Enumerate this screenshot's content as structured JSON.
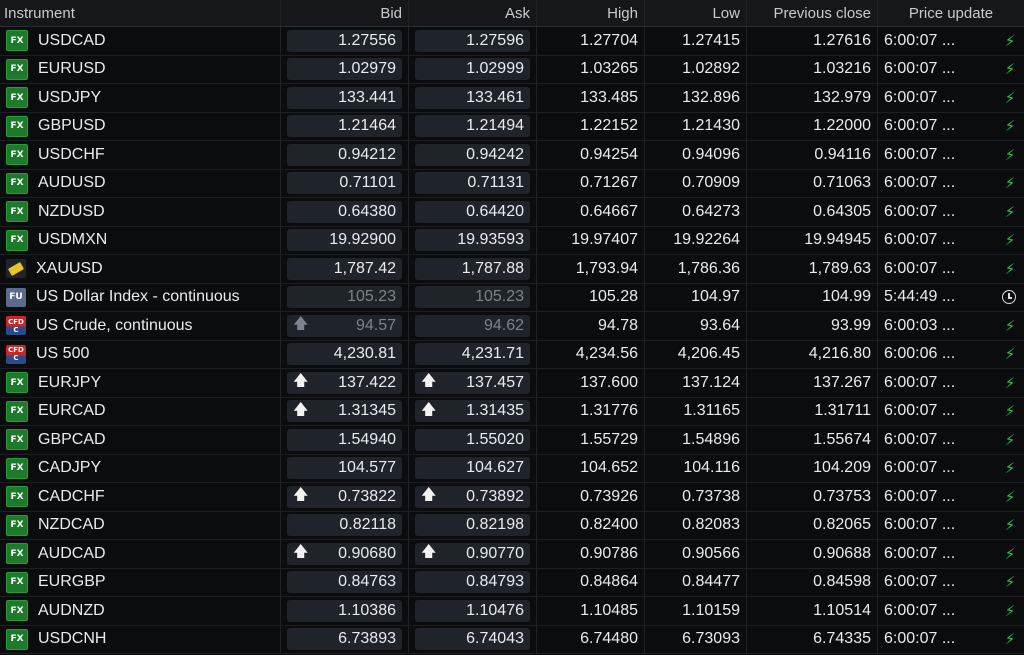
{
  "columns": {
    "instrument": "Instrument",
    "bid": "Bid",
    "ask": "Ask",
    "high": "High",
    "low": "Low",
    "prev_close": "Previous close",
    "price_update": "Price update"
  },
  "rows": [
    {
      "icon": "fx",
      "name": "USDCAD",
      "bid": "1.27556",
      "ask": "1.27596",
      "high": "1.27704",
      "low": "1.27415",
      "prev": "1.27616",
      "update": "6:00:07 ...",
      "status": "bolt",
      "bid_arrow": "",
      "ask_arrow": "",
      "dim": false
    },
    {
      "icon": "fx",
      "name": "EURUSD",
      "bid": "1.02979",
      "ask": "1.02999",
      "high": "1.03265",
      "low": "1.02892",
      "prev": "1.03216",
      "update": "6:00:07 ...",
      "status": "bolt",
      "bid_arrow": "",
      "ask_arrow": "",
      "dim": false
    },
    {
      "icon": "fx",
      "name": "USDJPY",
      "bid": "133.441",
      "ask": "133.461",
      "high": "133.485",
      "low": "132.896",
      "prev": "132.979",
      "update": "6:00:07 ...",
      "status": "bolt",
      "bid_arrow": "",
      "ask_arrow": "",
      "dim": false
    },
    {
      "icon": "fx",
      "name": "GBPUSD",
      "bid": "1.21464",
      "ask": "1.21494",
      "high": "1.22152",
      "low": "1.21430",
      "prev": "1.22000",
      "update": "6:00:07 ...",
      "status": "bolt",
      "bid_arrow": "",
      "ask_arrow": "",
      "dim": false
    },
    {
      "icon": "fx",
      "name": "USDCHF",
      "bid": "0.94212",
      "ask": "0.94242",
      "high": "0.94254",
      "low": "0.94096",
      "prev": "0.94116",
      "update": "6:00:07 ...",
      "status": "bolt",
      "bid_arrow": "",
      "ask_arrow": "",
      "dim": false
    },
    {
      "icon": "fx",
      "name": "AUDUSD",
      "bid": "0.71101",
      "ask": "0.71131",
      "high": "0.71267",
      "low": "0.70909",
      "prev": "0.71063",
      "update": "6:00:07 ...",
      "status": "bolt",
      "bid_arrow": "",
      "ask_arrow": "",
      "dim": false
    },
    {
      "icon": "fx",
      "name": "NZDUSD",
      "bid": "0.64380",
      "ask": "0.64420",
      "high": "0.64667",
      "low": "0.64273",
      "prev": "0.64305",
      "update": "6:00:07 ...",
      "status": "bolt",
      "bid_arrow": "",
      "ask_arrow": "",
      "dim": false
    },
    {
      "icon": "fx",
      "name": "USDMXN",
      "bid": "19.92900",
      "ask": "19.93593",
      "high": "19.97407",
      "low": "19.92264",
      "prev": "19.94945",
      "update": "6:00:07 ...",
      "status": "bolt",
      "bid_arrow": "",
      "ask_arrow": "",
      "dim": false
    },
    {
      "icon": "gold",
      "name": "XAUUSD",
      "bid": "1,787.42",
      "ask": "1,787.88",
      "high": "1,793.94",
      "low": "1,786.36",
      "prev": "1,789.63",
      "update": "6:00:07 ...",
      "status": "bolt",
      "bid_arrow": "",
      "ask_arrow": "",
      "dim": false
    },
    {
      "icon": "fu",
      "name": "US Dollar Index - continuous",
      "bid": "105.23",
      "ask": "105.23",
      "high": "105.28",
      "low": "104.97",
      "prev": "104.99",
      "update": "5:44:49 ...",
      "status": "clock",
      "bid_arrow": "",
      "ask_arrow": "",
      "dim": true
    },
    {
      "icon": "cfd",
      "name": "US Crude, continuous",
      "bid": "94.57",
      "ask": "94.62",
      "high": "94.78",
      "low": "93.64",
      "prev": "93.99",
      "update": "6:00:03 ...",
      "status": "bolt",
      "bid_arrow": "🡅",
      "ask_arrow": "",
      "dim": true
    },
    {
      "icon": "cfd",
      "name": "US 500",
      "bid": "4,230.81",
      "ask": "4,231.71",
      "high": "4,234.56",
      "low": "4,206.45",
      "prev": "4,216.80",
      "update": "6:00:06 ...",
      "status": "bolt",
      "bid_arrow": "",
      "ask_arrow": "",
      "dim": false
    },
    {
      "icon": "fx",
      "name": "EURJPY",
      "bid": "137.422",
      "ask": "137.457",
      "high": "137.600",
      "low": "137.124",
      "prev": "137.267",
      "update": "6:00:07 ...",
      "status": "bolt",
      "bid_arrow": "🡅",
      "ask_arrow": "🡅",
      "dim": false
    },
    {
      "icon": "fx",
      "name": "EURCAD",
      "bid": "1.31345",
      "ask": "1.31435",
      "high": "1.31776",
      "low": "1.31165",
      "prev": "1.31711",
      "update": "6:00:07 ...",
      "status": "bolt",
      "bid_arrow": "🡅",
      "ask_arrow": "🡅",
      "dim": false
    },
    {
      "icon": "fx",
      "name": "GBPCAD",
      "bid": "1.54940",
      "ask": "1.55020",
      "high": "1.55729",
      "low": "1.54896",
      "prev": "1.55674",
      "update": "6:00:07 ...",
      "status": "bolt",
      "bid_arrow": "",
      "ask_arrow": "",
      "dim": false
    },
    {
      "icon": "fx",
      "name": "CADJPY",
      "bid": "104.577",
      "ask": "104.627",
      "high": "104.652",
      "low": "104.116",
      "prev": "104.209",
      "update": "6:00:07 ...",
      "status": "bolt",
      "bid_arrow": "",
      "ask_arrow": "",
      "dim": false
    },
    {
      "icon": "fx",
      "name": "CADCHF",
      "bid": "0.73822",
      "ask": "0.73892",
      "high": "0.73926",
      "low": "0.73738",
      "prev": "0.73753",
      "update": "6:00:07 ...",
      "status": "bolt",
      "bid_arrow": "🡅",
      "ask_arrow": "🡅",
      "dim": false
    },
    {
      "icon": "fx",
      "name": "NZDCAD",
      "bid": "0.82118",
      "ask": "0.82198",
      "high": "0.82400",
      "low": "0.82083",
      "prev": "0.82065",
      "update": "6:00:07 ...",
      "status": "bolt",
      "bid_arrow": "",
      "ask_arrow": "",
      "dim": false
    },
    {
      "icon": "fx",
      "name": "AUDCAD",
      "bid": "0.90680",
      "ask": "0.90770",
      "high": "0.90786",
      "low": "0.90566",
      "prev": "0.90688",
      "update": "6:00:07 ...",
      "status": "bolt",
      "bid_arrow": "🡅",
      "ask_arrow": "🡅",
      "dim": false
    },
    {
      "icon": "fx",
      "name": "EURGBP",
      "bid": "0.84763",
      "ask": "0.84793",
      "high": "0.84864",
      "low": "0.84477",
      "prev": "0.84598",
      "update": "6:00:07 ...",
      "status": "bolt",
      "bid_arrow": "",
      "ask_arrow": "",
      "dim": false
    },
    {
      "icon": "fx",
      "name": "AUDNZD",
      "bid": "1.10386",
      "ask": "1.10476",
      "high": "1.10485",
      "low": "1.10159",
      "prev": "1.10514",
      "update": "6:00:07 ...",
      "status": "bolt",
      "bid_arrow": "",
      "ask_arrow": "",
      "dim": false
    },
    {
      "icon": "fx",
      "name": "USDCNH",
      "bid": "6.73893",
      "ask": "6.74043",
      "high": "6.74480",
      "low": "6.73093",
      "prev": "6.74335",
      "update": "6:00:07 ...",
      "status": "bolt",
      "bid_arrow": "",
      "ask_arrow": "",
      "dim": false
    }
  ],
  "icon_labels": {
    "fx": "FX",
    "fu": "FU",
    "cfd_top": "CFD",
    "cfd_bottom": "C"
  },
  "colors": {
    "bolt": "#27c24c",
    "fx_icon": "#1d7a2a",
    "gold_icon": "#e6c424"
  }
}
